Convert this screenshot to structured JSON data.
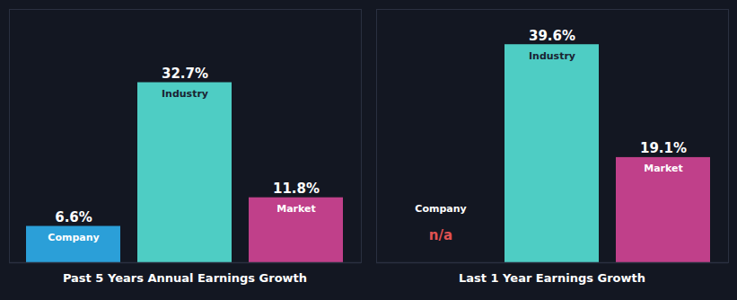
{
  "chart_data": [
    {
      "type": "bar",
      "title": "Past 5 Years Annual Earnings Growth",
      "categories": [
        "Company",
        "Industry",
        "Market"
      ],
      "values": [
        6.6,
        32.7,
        11.8
      ],
      "value_labels": [
        "6.6%",
        "32.7%",
        "11.8%"
      ],
      "colors": [
        "#2b9fd8",
        "#4ecdc4",
        "#c0408a"
      ],
      "ylim": [
        0,
        46
      ],
      "data_labels": true,
      "tick_labels": false,
      "grid": false
    },
    {
      "type": "bar",
      "title": "Last 1 Year Earnings Growth",
      "categories": [
        "Company",
        "Industry",
        "Market"
      ],
      "values": [
        null,
        39.6,
        19.1
      ],
      "value_labels": [
        "n/a",
        "39.6%",
        "19.1%"
      ],
      "colors": [
        "#e05252",
        "#4ecdc4",
        "#c0408a"
      ],
      "ylim": [
        0,
        46
      ],
      "data_labels": true,
      "tick_labels": false,
      "grid": false
    }
  ]
}
